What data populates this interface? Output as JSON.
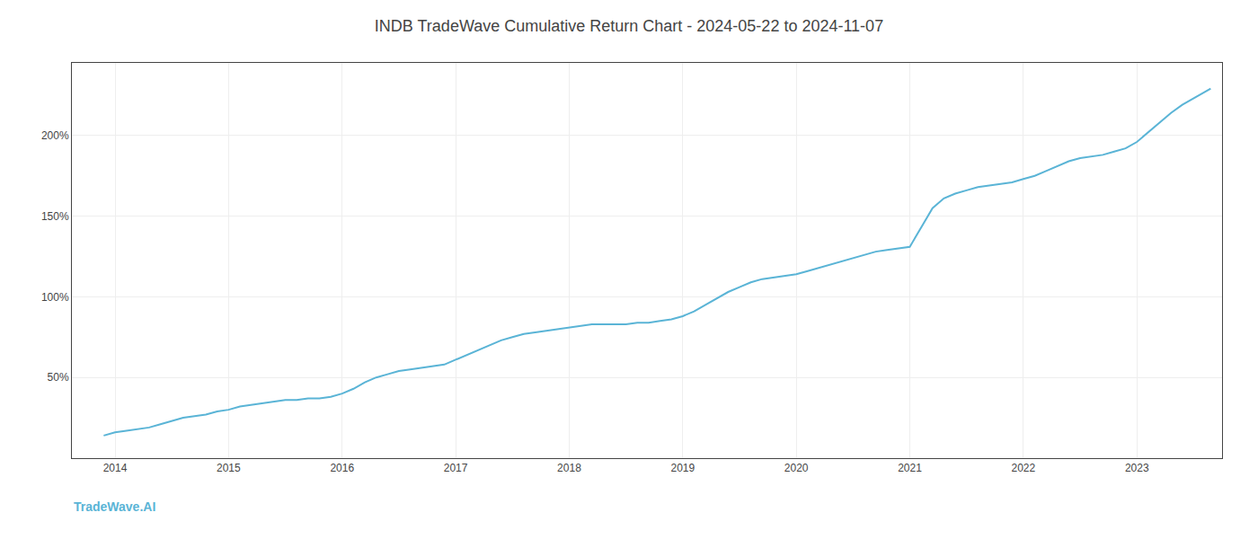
{
  "chart_data": {
    "type": "line",
    "title": "INDB TradeWave Cumulative Return Chart - 2024-05-22 to 2024-11-07",
    "annotations": [
      {
        "text": "TradeWave.AI"
      }
    ],
    "color": "#5ab4d6",
    "grid": true,
    "xlim": [
      2013.62,
      2023.75
    ],
    "ylim": [
      0,
      245
    ],
    "xticks": [
      2014,
      2015,
      2016,
      2017,
      2018,
      2019,
      2020,
      2021,
      2022,
      2023
    ],
    "yticks": [
      {
        "value": 50,
        "label": "50%"
      },
      {
        "value": 100,
        "label": "100%"
      },
      {
        "value": 150,
        "label": "150%"
      },
      {
        "value": 200,
        "label": "200%"
      }
    ],
    "x": [
      2013.9,
      2013.95,
      2014.0,
      2014.1,
      2014.2,
      2014.3,
      2014.4,
      2014.5,
      2014.6,
      2014.7,
      2014.8,
      2014.9,
      2015.0,
      2015.1,
      2015.2,
      2015.3,
      2015.4,
      2015.5,
      2015.6,
      2015.7,
      2015.8,
      2015.9,
      2016.0,
      2016.1,
      2016.2,
      2016.3,
      2016.4,
      2016.5,
      2016.6,
      2016.7,
      2016.8,
      2016.9,
      2017.0,
      2017.1,
      2017.2,
      2017.3,
      2017.4,
      2017.5,
      2017.6,
      2017.7,
      2017.8,
      2017.9,
      2018.0,
      2018.1,
      2018.2,
      2018.3,
      2018.4,
      2018.5,
      2018.6,
      2018.7,
      2018.8,
      2018.9,
      2019.0,
      2019.1,
      2019.2,
      2019.3,
      2019.4,
      2019.5,
      2019.6,
      2019.7,
      2019.8,
      2019.9,
      2020.0,
      2020.1,
      2020.2,
      2020.3,
      2020.4,
      2020.5,
      2020.6,
      2020.7,
      2020.8,
      2020.9,
      2021.0,
      2021.1,
      2021.2,
      2021.3,
      2021.4,
      2021.5,
      2021.6,
      2021.7,
      2021.8,
      2021.9,
      2022.0,
      2022.1,
      2022.2,
      2022.3,
      2022.4,
      2022.5,
      2022.6,
      2022.7,
      2022.8,
      2022.9,
      2023.0,
      2023.1,
      2023.2,
      2023.3,
      2023.4,
      2023.5,
      2023.6,
      2023.65
    ],
    "values": [
      14,
      15,
      16,
      17,
      18,
      19,
      21,
      23,
      25,
      26,
      27,
      29,
      30,
      32,
      33,
      34,
      35,
      36,
      36,
      37,
      37,
      38,
      40,
      43,
      47,
      50,
      52,
      54,
      55,
      56,
      57,
      58,
      61,
      64,
      67,
      70,
      73,
      75,
      77,
      78,
      79,
      80,
      81,
      82,
      83,
      83,
      83,
      83,
      84,
      84,
      85,
      86,
      88,
      91,
      95,
      99,
      103,
      106,
      109,
      111,
      112,
      113,
      114,
      116,
      118,
      120,
      122,
      124,
      126,
      128,
      129,
      130,
      131,
      143,
      155,
      161,
      164,
      166,
      168,
      169,
      170,
      171,
      173,
      175,
      178,
      181,
      184,
      186,
      187,
      188,
      190,
      192,
      196,
      202,
      208,
      214,
      219,
      223,
      227,
      229
    ]
  }
}
